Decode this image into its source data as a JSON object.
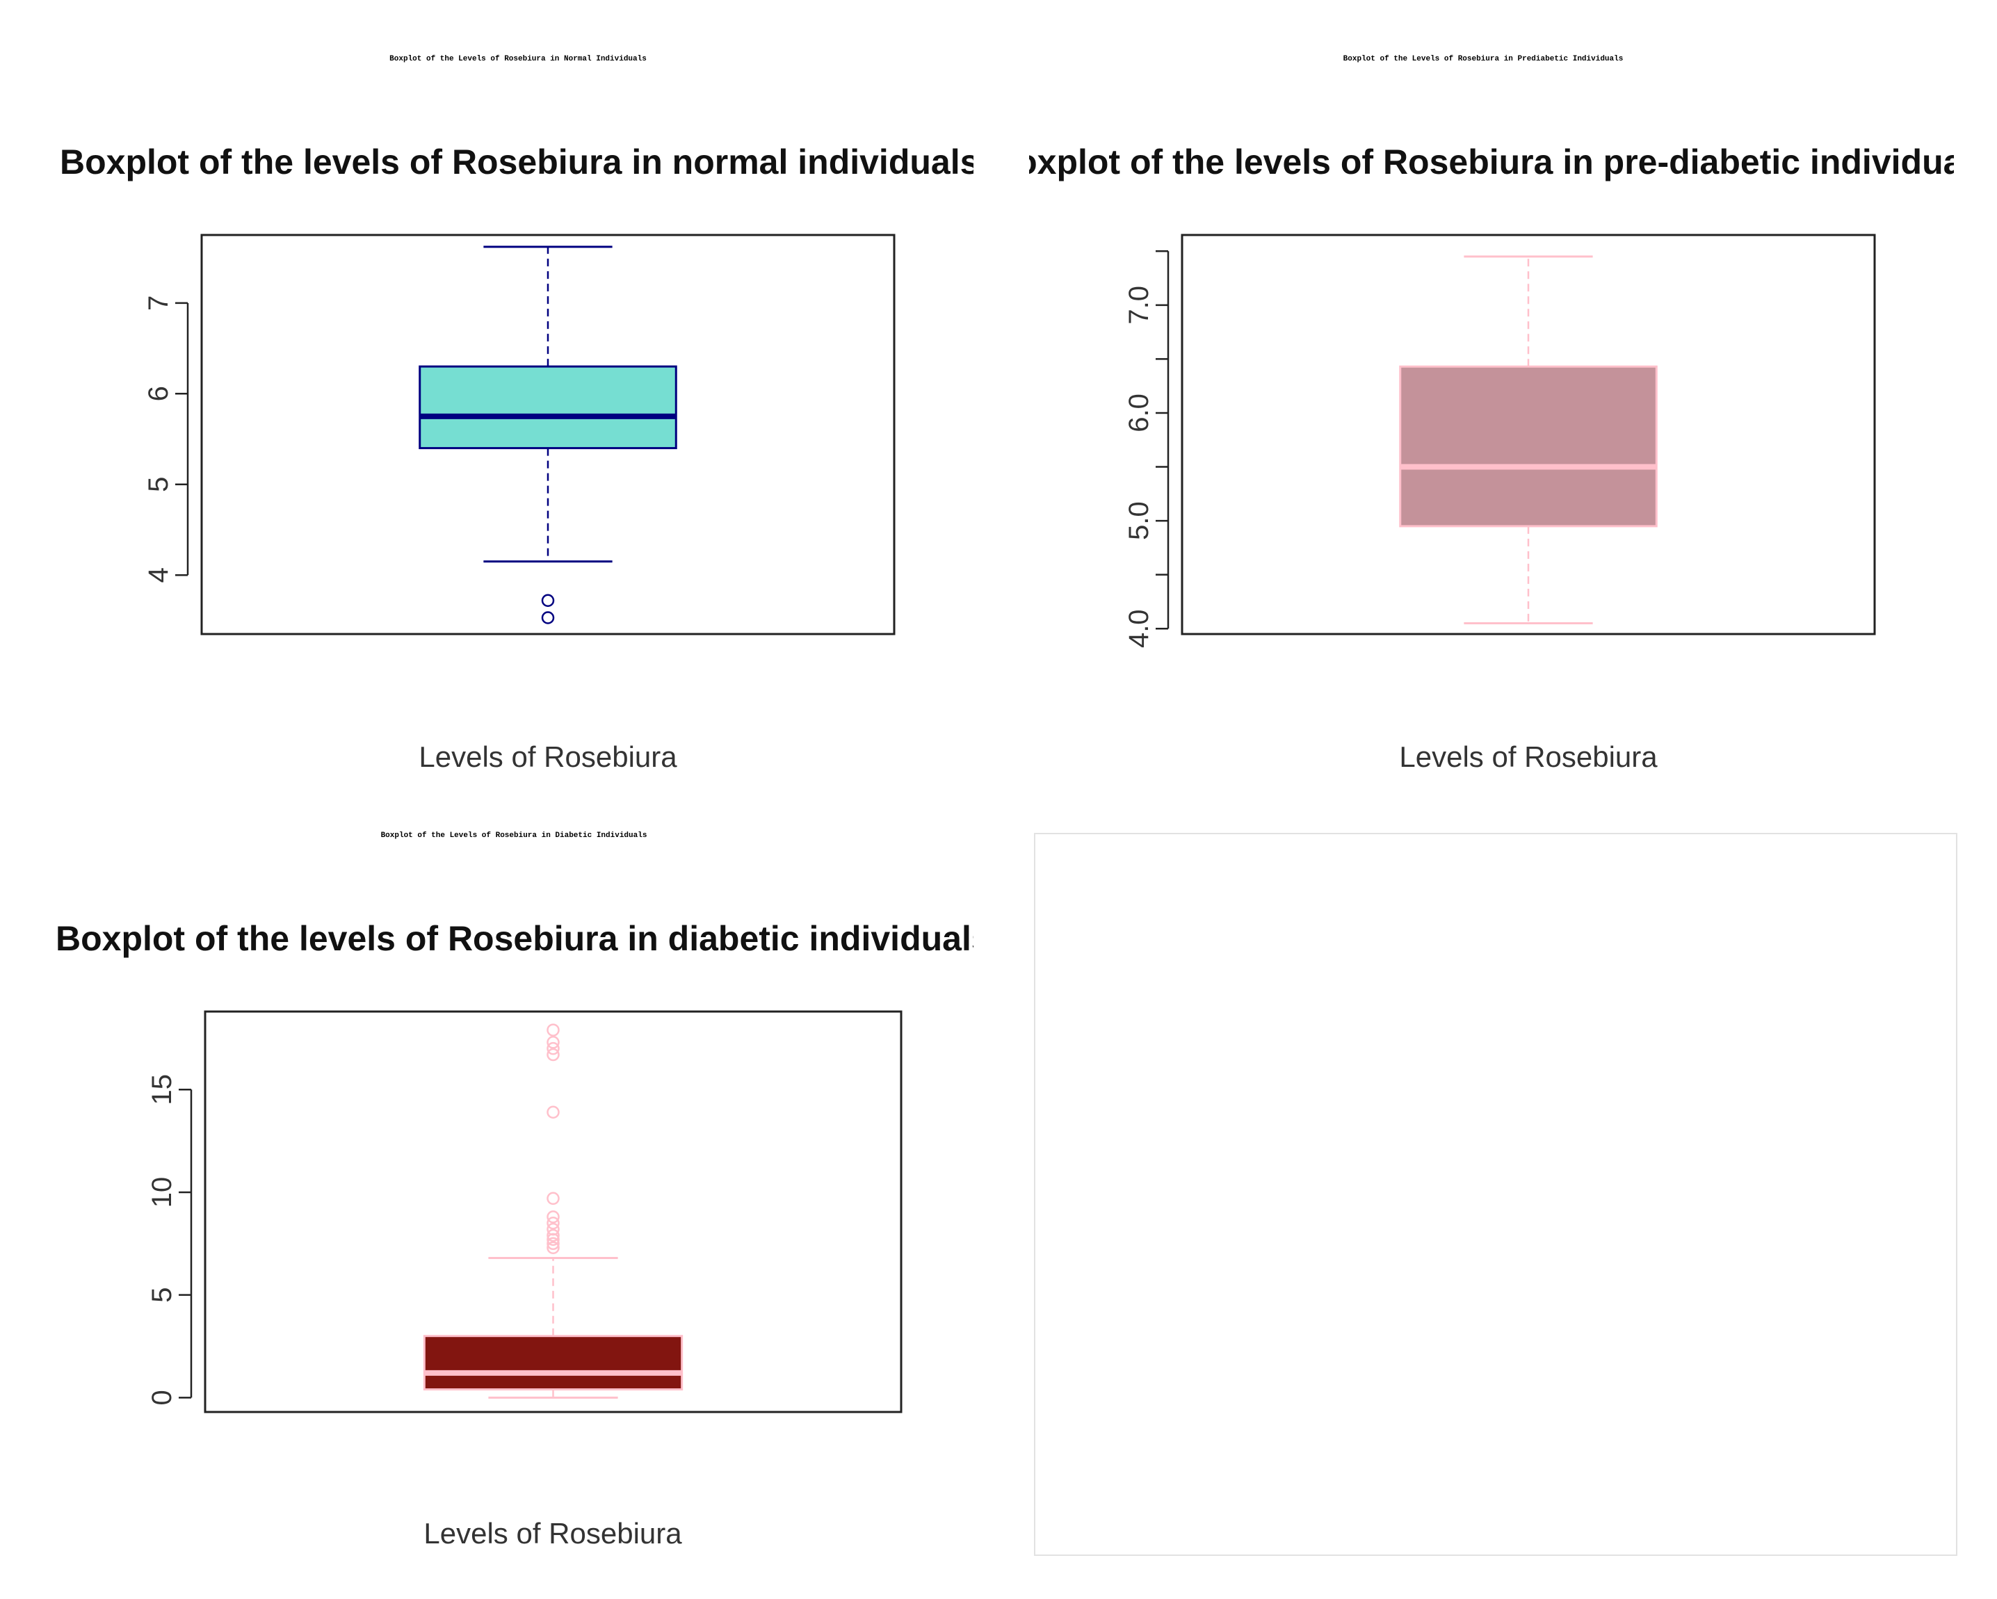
{
  "captions": [
    "Boxplot of the Levels of Rosebiura in Normal Individuals",
    "Boxplot of the Levels of Rosebiura in Prediabetic Individuals",
    "Boxplot of the Levels of Rosebiura in Diabetic Individuals"
  ],
  "chart_data": [
    {
      "type": "box",
      "title": "Boxplot of the levels of Rosebiura in normal individuals",
      "xlabel": "Levels of Rosebiura",
      "ylabel": "",
      "ylim": [
        3.35,
        7.75
      ],
      "yticks": [
        4,
        5,
        6,
        7
      ],
      "ytick_labels": [
        "4",
        "5",
        "6",
        "7"
      ],
      "box": {
        "min": 4.15,
        "q1": 5.4,
        "median": 5.75,
        "q3": 6.3,
        "max": 7.62
      },
      "outliers": [
        3.72,
        3.53
      ],
      "colors": {
        "fill": "#76ded2",
        "line": "#000080",
        "median": "#000080"
      }
    },
    {
      "type": "box",
      "title": "Boxplot of the levels of Rosebiura in pre-diabetic individuals",
      "xlabel": "Levels of Rosebiura",
      "ylabel": "",
      "ylim": [
        3.95,
        7.65
      ],
      "yticks": [
        4.0,
        4.5,
        5.0,
        5.5,
        6.0,
        6.5,
        7.0,
        7.5
      ],
      "ytick_labels": [
        "4.0",
        "",
        "5.0",
        "",
        "6.0",
        "",
        "7.0",
        ""
      ],
      "box": {
        "min": 4.05,
        "q1": 4.95,
        "median": 5.5,
        "q3": 6.43,
        "max": 7.45
      },
      "outliers": [],
      "colors": {
        "fill": "#c4929a",
        "line": "#ffc0cb",
        "median": "#ffc0cb"
      }
    },
    {
      "type": "box",
      "title": "Boxplot of the levels of Rosebiura in diabetic individuals",
      "xlabel": "Levels of Rosebiura",
      "ylabel": "",
      "ylim": [
        -0.7,
        18.8
      ],
      "yticks": [
        0,
        5,
        10,
        15
      ],
      "ytick_labels": [
        "0",
        "5",
        "10",
        "15"
      ],
      "box": {
        "min": 0.0,
        "q1": 0.4,
        "median": 1.2,
        "q3": 3.0,
        "max": 6.8
      },
      "outliers": [
        7.3,
        7.5,
        7.7,
        7.9,
        8.2,
        8.5,
        8.8,
        9.7,
        13.9,
        16.7,
        17.0,
        17.3,
        17.9
      ],
      "colors": {
        "fill": "#821510",
        "line": "#ffc0cb",
        "median": "#ffc0cb"
      }
    }
  ]
}
